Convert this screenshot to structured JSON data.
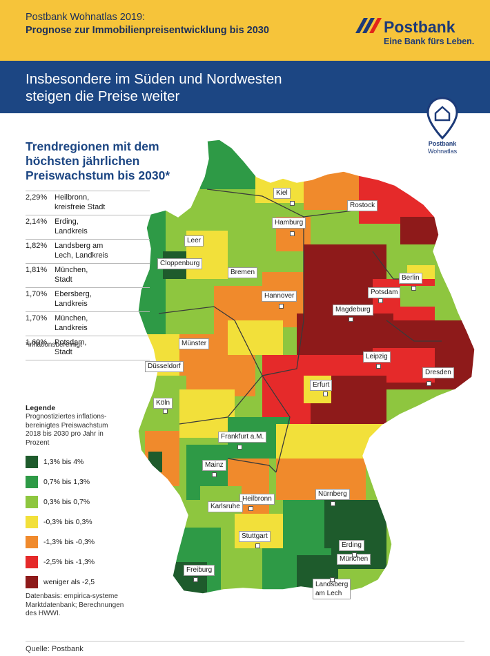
{
  "header": {
    "line1": "Postbank Wohnatlas 2019:",
    "line2": "Prognose zur Immobilienpreisentwicklung bis 2030"
  },
  "logo": {
    "word": "Postbank",
    "slogan": "Eine Bank fürs Leben."
  },
  "headline": {
    "line1": "Insbesondere im Süden und Nordwesten",
    "line2": "steigen die Preise weiter"
  },
  "badge": {
    "line1": "Postbank",
    "line2": "Wohnatlas"
  },
  "trend": {
    "title_line1": "Trendregionen mit dem",
    "title_line2": "höchsten jährlichen",
    "title_line3": "Preiswachstum bis 2030*",
    "rows": [
      {
        "pct": "2,29%",
        "name1": "Heilbronn,",
        "name2": "kreisfreie Stadt"
      },
      {
        "pct": "2,14%",
        "name1": "Erding,",
        "name2": "Landkreis"
      },
      {
        "pct": "1,82%",
        "name1": "Landsberg am",
        "name2": "Lech, Landkreis"
      },
      {
        "pct": "1,81%",
        "name1": "München,",
        "name2": "Stadt"
      },
      {
        "pct": "1,70%",
        "name1": "Ebersberg,",
        "name2": "Landkreis"
      },
      {
        "pct": "1,70%",
        "name1": "München,",
        "name2": "Landkreis"
      },
      {
        "pct": "1,69%",
        "name1": "Potsdam,",
        "name2": "Stadt"
      }
    ],
    "footnote": "*inflationsbereinigt"
  },
  "legend": {
    "title": "Legende",
    "desc_line1": "Prognostiziertes inflations-",
    "desc_line2": "bereinigtes Preiswachstum",
    "desc_line3": "2018 bis 2030 pro Jahr in",
    "desc_line4": "Prozent",
    "items": [
      {
        "label": "1,3% bis 4%",
        "color": "#1e5b2c"
      },
      {
        "label": "0,7% bis 1,3%",
        "color": "#2e9a46"
      },
      {
        "label": "0,3% bis 0,7%",
        "color": "#8ec63f"
      },
      {
        "label": "-0,3% bis 0,3%",
        "color": "#f2e03a"
      },
      {
        "label": "-1,3% bis -0,3%",
        "color": "#f08a2c"
      },
      {
        "label": "-2,5% bis -1,3%",
        "color": "#e52a2a"
      },
      {
        "label": "weniger als -2,5",
        "color": "#8e1a1a"
      }
    ]
  },
  "source": {
    "line1": "Datenbasis: empirica-systeme",
    "line2": "Marktdatenbank; Berechnungen",
    "line3": "des HWWI."
  },
  "quelle": "Quelle: Postbank",
  "cities": {
    "kiel": "Kiel",
    "rostock": "Rostock",
    "hamburg": "Hamburg",
    "leer": "Leer",
    "cloppenburg": "Cloppenburg",
    "bremen": "Bremen",
    "berlin": "Berlin",
    "potsdam": "Potsdam",
    "hannover": "Hannover",
    "magdeburg": "Magdeburg",
    "muenster": "Münster",
    "duesseldorf": "Düsseldorf",
    "leipzig": "Leipzig",
    "dresden": "Dresden",
    "erfurt": "Erfurt",
    "koeln": "Köln",
    "frankfurt": "Frankfurt a.M.",
    "mainz": "Mainz",
    "heilbronn": "Heilbronn",
    "karlsruhe": "Karlsruhe",
    "nuernberg": "Nürnberg",
    "stuttgart": "Stuttgart",
    "erding": "Erding",
    "muenchen": "München",
    "freiburg": "Freiburg",
    "landsberg_line1": "Landsberg",
    "landsberg_line2": "am Lech"
  }
}
